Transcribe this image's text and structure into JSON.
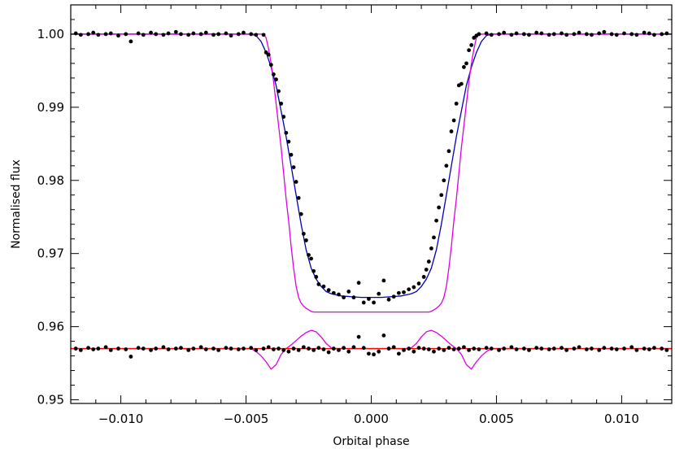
{
  "chart_data": {
    "type": "scatter",
    "xlabel": "Orbital phase",
    "ylabel": "Normalised flux",
    "xlim": [
      -0.012,
      0.012
    ],
    "ylim": [
      0.9495,
      1.004
    ],
    "x_ticks": [
      -0.01,
      -0.005,
      0.0,
      0.005,
      0.01
    ],
    "x_tick_labels": [
      "−0.010",
      "−0.005",
      "0.000",
      "0.005",
      "0.010"
    ],
    "y_ticks": [
      0.95,
      0.96,
      0.97,
      0.98,
      0.99,
      1.0
    ],
    "y_tick_labels": [
      "0.95",
      "0.96",
      "0.97",
      "0.98",
      "0.99",
      "1.00"
    ],
    "grid": false,
    "legend": "none",
    "series": [
      {
        "kind": "line",
        "color": "#0000b4",
        "x": [
          -0.012,
          -0.0048,
          -0.0046,
          -0.0044,
          -0.0042,
          -0.004,
          -0.0038,
          -0.0036,
          -0.0034,
          -0.0032,
          -0.003,
          -0.0028,
          -0.0026,
          -0.0024,
          -0.0022,
          -0.002,
          -0.0018,
          -0.0016,
          -0.0012,
          -0.0008,
          -0.0004,
          0.0,
          0.0004,
          0.0008,
          0.0012,
          0.0016,
          0.0018,
          0.002,
          0.0022,
          0.0024,
          0.0026,
          0.0028,
          0.003,
          0.0032,
          0.0034,
          0.0036,
          0.0038,
          0.004,
          0.0042,
          0.0044,
          0.0046,
          0.0048,
          0.012
        ],
        "y": [
          1.0,
          1.0,
          0.9998,
          0.999,
          0.9975,
          0.9955,
          0.993,
          0.9895,
          0.986,
          0.982,
          0.978,
          0.974,
          0.9705,
          0.968,
          0.9665,
          0.9655,
          0.9648,
          0.9645,
          0.9642,
          0.9641,
          0.964,
          0.964,
          0.964,
          0.9641,
          0.9642,
          0.9645,
          0.9648,
          0.9655,
          0.9665,
          0.968,
          0.9705,
          0.974,
          0.978,
          0.982,
          0.986,
          0.9895,
          0.993,
          0.9955,
          0.9975,
          0.999,
          0.9998,
          1.0,
          1.0
        ]
      },
      {
        "kind": "line",
        "color": "#e000e0",
        "x": [
          -0.012,
          -0.0043,
          -0.0042,
          -0.0041,
          -0.004,
          -0.0039,
          -0.0038,
          -0.0037,
          -0.0036,
          -0.0035,
          -0.0034,
          -0.0033,
          -0.0032,
          -0.0031,
          -0.003,
          -0.0029,
          -0.0028,
          -0.0027,
          -0.0026,
          -0.0025,
          -0.0024,
          -0.0023,
          -0.0022,
          -0.002,
          -0.0016,
          -0.001,
          -0.0004,
          0.0,
          0.0004,
          0.001,
          0.0016,
          0.002,
          0.0022,
          0.0023,
          0.0024,
          0.0025,
          0.0026,
          0.0027,
          0.0028,
          0.0029,
          0.003,
          0.0031,
          0.0032,
          0.0033,
          0.0034,
          0.0035,
          0.0036,
          0.0037,
          0.0038,
          0.0039,
          0.004,
          0.0041,
          0.0042,
          0.0043,
          0.012
        ],
        "y": [
          1.0,
          1.0,
          0.9995,
          0.998,
          0.996,
          0.9935,
          0.9905,
          0.9875,
          0.9845,
          0.981,
          0.9775,
          0.9745,
          0.971,
          0.968,
          0.9655,
          0.964,
          0.9632,
          0.9628,
          0.9625,
          0.9623,
          0.9621,
          0.962,
          0.962,
          0.962,
          0.962,
          0.962,
          0.962,
          0.962,
          0.962,
          0.962,
          0.962,
          0.962,
          0.962,
          0.962,
          0.9621,
          0.9623,
          0.9625,
          0.9628,
          0.9632,
          0.964,
          0.9655,
          0.968,
          0.971,
          0.9745,
          0.9775,
          0.981,
          0.9845,
          0.9875,
          0.9905,
          0.9935,
          0.996,
          0.998,
          0.9995,
          1.0,
          1.0
        ]
      },
      {
        "kind": "line",
        "color": "#e000e0",
        "x": [
          -0.012,
          -0.0048,
          -0.0046,
          -0.0044,
          -0.0042,
          -0.004,
          -0.0038,
          -0.0036,
          -0.0034,
          -0.0032,
          -0.003,
          -0.0028,
          -0.0026,
          -0.0024,
          -0.0022,
          -0.002,
          -0.0018,
          -0.0016,
          -0.0014,
          0.0,
          0.0014,
          0.0016,
          0.0018,
          0.002,
          0.0022,
          0.0024,
          0.0026,
          0.0028,
          0.003,
          0.0032,
          0.0034,
          0.0036,
          0.0038,
          0.004,
          0.0042,
          0.0044,
          0.0046,
          0.0048,
          0.012
        ],
        "y": [
          0.957,
          0.957,
          0.9566,
          0.956,
          0.9552,
          0.9542,
          0.9548,
          0.9562,
          0.957,
          0.9575,
          0.9581,
          0.9587,
          0.9592,
          0.9595,
          0.9593,
          0.9586,
          0.9577,
          0.9571,
          0.957,
          0.957,
          0.957,
          0.9571,
          0.9577,
          0.9586,
          0.9593,
          0.9595,
          0.9592,
          0.9587,
          0.9581,
          0.9575,
          0.957,
          0.9562,
          0.9548,
          0.9542,
          0.9552,
          0.956,
          0.9566,
          0.957,
          0.957
        ]
      },
      {
        "kind": "line",
        "color": "#ff0000",
        "x": [
          -0.012,
          0.012
        ],
        "y": [
          0.957,
          0.957
        ]
      },
      {
        "kind": "points",
        "color": "#000000",
        "x": [
          -0.0118,
          -0.0116,
          -0.0113,
          -0.0111,
          -0.0109,
          -0.0106,
          -0.0104,
          -0.0101,
          -0.0098,
          -0.0096,
          -0.0093,
          -0.0091,
          -0.0088,
          -0.0086,
          -0.0083,
          -0.0081,
          -0.0078,
          -0.0076,
          -0.0073,
          -0.0071,
          -0.0068,
          -0.0066,
          -0.0063,
          -0.0061,
          -0.0058,
          -0.0056,
          -0.0053,
          -0.0051,
          -0.0048,
          -0.0046,
          -0.0043,
          -0.0042,
          -0.0041,
          -0.004,
          -0.0039,
          -0.0038,
          -0.0037,
          -0.0036,
          -0.0035,
          -0.0034,
          -0.0033,
          -0.0032,
          -0.0031,
          -0.003,
          -0.0029,
          -0.0028,
          -0.0027,
          -0.0026,
          -0.0025,
          -0.0024,
          -0.0023,
          -0.0022,
          -0.0021,
          -0.0019,
          -0.0017,
          -0.0015,
          -0.0013,
          -0.0011,
          -0.0009,
          -0.0007,
          -0.0005,
          -0.0003,
          -0.0001,
          0.0001,
          0.0003,
          0.0005,
          0.0007,
          0.0009,
          0.0011,
          0.0013,
          0.0015,
          0.0017,
          0.0019,
          0.0021,
          0.0022,
          0.0023,
          0.0024,
          0.0025,
          0.0026,
          0.0027,
          0.0028,
          0.0029,
          0.003,
          0.0031,
          0.0032,
          0.0033,
          0.0034,
          0.0035,
          0.0036,
          0.0037,
          0.0038,
          0.0039,
          0.004,
          0.0041,
          0.0042,
          0.0043,
          0.0046,
          0.0048,
          0.0051,
          0.0053,
          0.0056,
          0.0058,
          0.0061,
          0.0063,
          0.0066,
          0.0068,
          0.0071,
          0.0073,
          0.0076,
          0.0078,
          0.0081,
          0.0083,
          0.0086,
          0.0088,
          0.0091,
          0.0093,
          0.0096,
          0.0098,
          0.0101,
          0.0104,
          0.0106,
          0.0109,
          0.0111,
          0.0113,
          0.0116,
          0.0118
        ],
        "y": [
          1.0001,
          0.9999,
          1.0,
          1.0002,
          0.9999,
          1.0,
          1.0001,
          0.9998,
          1.0,
          0.999,
          1.0001,
          0.9999,
          1.0002,
          1.0,
          0.9999,
          1.0001,
          1.0003,
          1.0,
          0.9999,
          1.0001,
          1.0,
          1.0002,
          0.9999,
          1.0,
          1.0001,
          0.9998,
          1.0,
          1.0002,
          1.0,
          0.9999,
          0.9999,
          0.9975,
          0.9972,
          0.9958,
          0.9945,
          0.9938,
          0.9922,
          0.9905,
          0.9887,
          0.9865,
          0.9853,
          0.9835,
          0.9818,
          0.9798,
          0.9776,
          0.9754,
          0.9727,
          0.9718,
          0.9698,
          0.9693,
          0.9676,
          0.9668,
          0.9658,
          0.9655,
          0.965,
          0.9646,
          0.9644,
          0.964,
          0.9648,
          0.964,
          0.966,
          0.9633,
          0.9638,
          0.9633,
          0.9645,
          0.9663,
          0.9637,
          0.9641,
          0.9646,
          0.9647,
          0.9651,
          0.9654,
          0.9659,
          0.9668,
          0.9678,
          0.9689,
          0.9707,
          0.9722,
          0.9745,
          0.9763,
          0.978,
          0.98,
          0.982,
          0.984,
          0.9867,
          0.9882,
          0.9905,
          0.993,
          0.9932,
          0.9955,
          0.996,
          0.9978,
          0.9985,
          0.9995,
          0.9998,
          1.0,
          1.0001,
          0.9999,
          1.0,
          1.0002,
          0.9999,
          1.0001,
          1.0,
          0.9999,
          1.0002,
          1.0001,
          0.9999,
          1.0,
          1.0001,
          0.9999,
          1.0,
          1.0002,
          1.0,
          0.9999,
          1.0001,
          1.0003,
          1.0,
          0.9999,
          1.0001,
          1.0,
          0.9999,
          1.0002,
          1.0001,
          0.9999,
          1.0,
          1.0001
        ]
      },
      {
        "kind": "points",
        "color": "#000000",
        "x": [
          -0.0118,
          -0.0116,
          -0.0113,
          -0.0111,
          -0.0109,
          -0.0106,
          -0.0104,
          -0.0101,
          -0.0098,
          -0.0096,
          -0.0093,
          -0.0091,
          -0.0088,
          -0.0086,
          -0.0083,
          -0.0081,
          -0.0078,
          -0.0076,
          -0.0073,
          -0.0071,
          -0.0068,
          -0.0066,
          -0.0063,
          -0.0061,
          -0.0058,
          -0.0056,
          -0.0053,
          -0.0051,
          -0.0048,
          -0.0046,
          -0.0043,
          -0.0041,
          -0.0039,
          -0.0037,
          -0.0035,
          -0.0033,
          -0.0031,
          -0.0029,
          -0.0027,
          -0.0025,
          -0.0023,
          -0.0021,
          -0.0019,
          -0.0017,
          -0.0015,
          -0.0013,
          -0.0011,
          -0.0009,
          -0.0007,
          -0.0005,
          -0.0003,
          -0.0001,
          0.0001,
          0.0003,
          0.0005,
          0.0007,
          0.0009,
          0.0011,
          0.0013,
          0.0015,
          0.0017,
          0.0019,
          0.0021,
          0.0023,
          0.0025,
          0.0027,
          0.0029,
          0.0031,
          0.0033,
          0.0035,
          0.0037,
          0.0039,
          0.0041,
          0.0043,
          0.0046,
          0.0048,
          0.0051,
          0.0053,
          0.0056,
          0.0058,
          0.0061,
          0.0063,
          0.0066,
          0.0068,
          0.0071,
          0.0073,
          0.0076,
          0.0078,
          0.0081,
          0.0083,
          0.0086,
          0.0088,
          0.0091,
          0.0093,
          0.0096,
          0.0098,
          0.0101,
          0.0104,
          0.0106,
          0.0109,
          0.0111,
          0.0113,
          0.0116,
          0.0118
        ],
        "y": [
          0.957,
          0.9568,
          0.9571,
          0.9569,
          0.957,
          0.9572,
          0.9568,
          0.957,
          0.9569,
          0.9559,
          0.9571,
          0.957,
          0.9568,
          0.957,
          0.9572,
          0.9569,
          0.957,
          0.9571,
          0.9568,
          0.957,
          0.9572,
          0.9569,
          0.957,
          0.9568,
          0.9571,
          0.957,
          0.9569,
          0.957,
          0.9571,
          0.9568,
          0.957,
          0.9572,
          0.9569,
          0.957,
          0.9568,
          0.9566,
          0.957,
          0.9568,
          0.9572,
          0.957,
          0.9568,
          0.9571,
          0.9569,
          0.9565,
          0.957,
          0.9568,
          0.9571,
          0.9566,
          0.9572,
          0.9586,
          0.9571,
          0.9563,
          0.9562,
          0.9566,
          0.9588,
          0.957,
          0.9572,
          0.9563,
          0.9568,
          0.957,
          0.9566,
          0.9571,
          0.957,
          0.9569,
          0.9566,
          0.957,
          0.9568,
          0.9571,
          0.9569,
          0.957,
          0.9572,
          0.9568,
          0.957,
          0.9569,
          0.9571,
          0.957,
          0.9568,
          0.957,
          0.9572,
          0.9569,
          0.957,
          0.9568,
          0.9571,
          0.957,
          0.9569,
          0.957,
          0.9571,
          0.9568,
          0.957,
          0.9572,
          0.9569,
          0.957,
          0.9568,
          0.9571,
          0.957,
          0.9569,
          0.957,
          0.9572,
          0.9568,
          0.957,
          0.9569,
          0.9571,
          0.957,
          0.9568
        ]
      }
    ]
  }
}
